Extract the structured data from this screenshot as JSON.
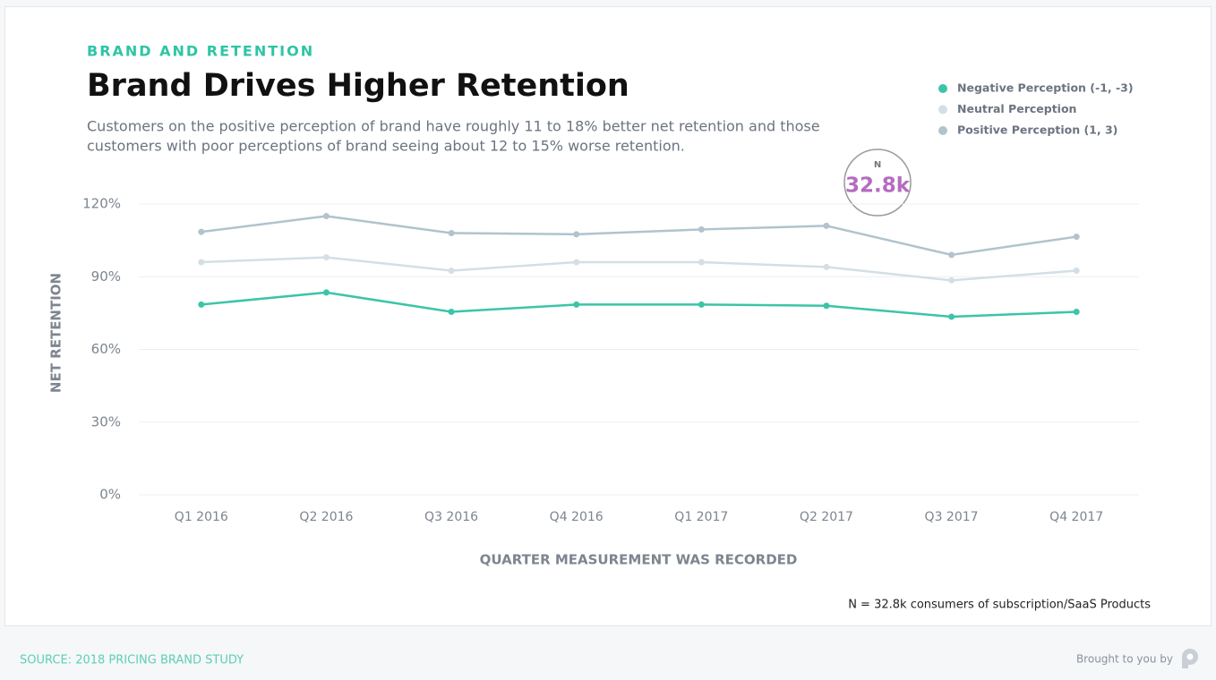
{
  "chart_data": {
    "type": "line",
    "kicker": "BRAND AND RETENTION",
    "title": "Brand Drives Higher Retention",
    "subtitle": [
      "Customers on the positive perception of brand have roughly 11 to 18% better net retention and those",
      "customers with poor perceptions of brand seeing about 12 to 15% worse retention."
    ],
    "y_label": "NET RETENTION",
    "x_label": "QUARTER MEASUREMENT WAS RECORDED",
    "categories": [
      "Q1 2016",
      "Q2 2016",
      "Q3 2016",
      "Q4 2016",
      "Q1 2017",
      "Q2 2017",
      "Q3 2017",
      "Q4 2017"
    ],
    "series": [
      {
        "name": "Negative Perception (-1, -3)",
        "color": "#3cc4a8",
        "values": [
          78.5,
          83.5,
          75.5,
          78.5,
          78.5,
          78,
          73.5,
          75.5
        ]
      },
      {
        "name": "Neutral Perception",
        "color": "#d3dfe5",
        "values": [
          96,
          98,
          92.5,
          96,
          96,
          94,
          88.5,
          92.5
        ]
      },
      {
        "name": "Positive Perception (1, 3)",
        "color": "#b1c3cc",
        "values": [
          108.5,
          115,
          108,
          107.5,
          109.5,
          111,
          99,
          106.5
        ]
      }
    ],
    "ylim": [
      0,
      120
    ],
    "yticks": [
      {
        "value": 0,
        "label": "0%"
      },
      {
        "value": 30,
        "label": "30%"
      },
      {
        "value": 60,
        "label": "60%"
      },
      {
        "value": 90,
        "label": "90%"
      },
      {
        "value": 120,
        "label": "120%"
      }
    ],
    "grid": true,
    "badge": {
      "label": "N",
      "value": "32.8k"
    },
    "note": "N = 32.8k consumers of subscription/SaaS Products",
    "source": "SOURCE: 2018 PRICING BRAND STUDY",
    "credit": "Brought to you by"
  }
}
